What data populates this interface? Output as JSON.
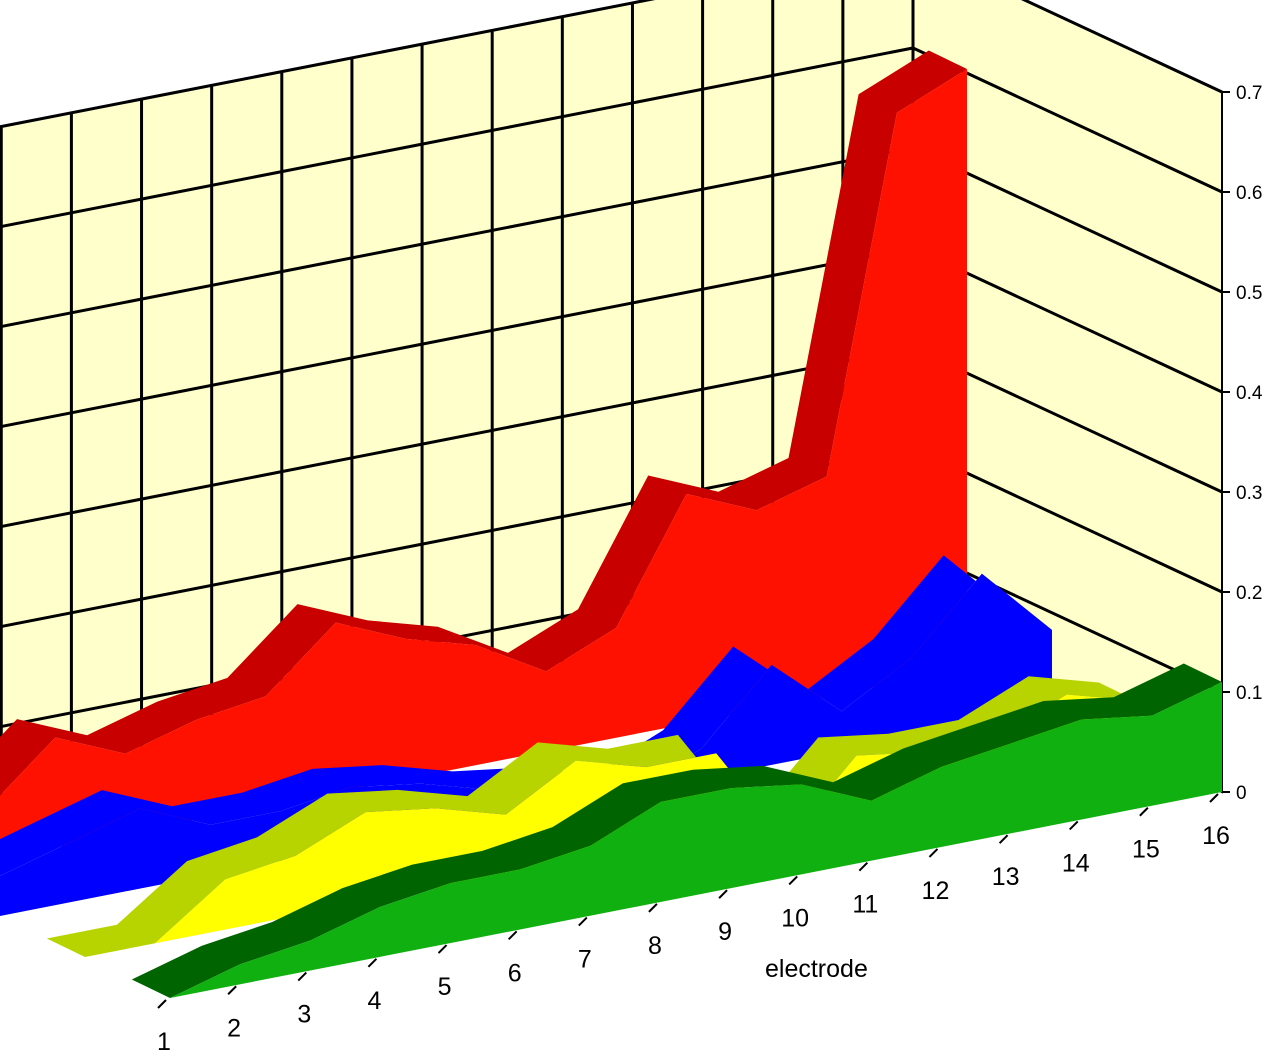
{
  "chart_data": {
    "type": "area",
    "title": "",
    "xlabel": "electrode",
    "ylabel": "",
    "categories": [
      "1",
      "2",
      "3",
      "4",
      "5",
      "6",
      "7",
      "8",
      "9",
      "10",
      "11",
      "12",
      "13",
      "14",
      "15",
      "16"
    ],
    "ylim": [
      0,
      0.7
    ],
    "yticks": [
      "0",
      "0.1",
      "0.2",
      "0.3",
      "0.4",
      "0.5",
      "0.6",
      "0.7"
    ],
    "grid": true,
    "wall_color": "#ffffcc",
    "series": [
      {
        "color": "#ff1100",
        "top_color": "#c80000",
        "side_color": "#7a0000",
        "values": [
          0.04,
          0.05,
          0.11,
          0.08,
          0.1,
          0.11,
          0.17,
          0.14,
          0.12,
          0.08,
          0.11,
          0.23,
          0.2,
          0.22,
          0.57,
          0.6
        ]
      },
      {
        "color": "#0000ff",
        "top_color": "#0000ff",
        "side_color": "#0000ff",
        "values": [
          0.04,
          0.06,
          0.08,
          0.05,
          0.05,
          0.06,
          0.05,
          0.03,
          0.02,
          0.0,
          0.03,
          0.1,
          0.04,
          0.08,
          0.15,
          0.08
        ]
      },
      {
        "color": "#ffff00",
        "top_color": "#b8d400",
        "side_color": "#6a7a00",
        "values": [
          0.0,
          0.0,
          0.05,
          0.06,
          0.09,
          0.08,
          0.06,
          0.1,
          0.08,
          0.08,
          -0.02,
          0.05,
          0.04,
          0.04,
          0.07,
          0.05
        ]
      },
      {
        "color": "#10b010",
        "top_color": "#006400",
        "side_color": "#002200",
        "values": [
          0.0,
          0.02,
          0.03,
          0.05,
          0.06,
          0.06,
          0.07,
          0.1,
          0.1,
          0.09,
          0.06,
          0.08,
          0.09,
          0.1,
          0.09,
          0.11
        ]
      }
    ]
  }
}
